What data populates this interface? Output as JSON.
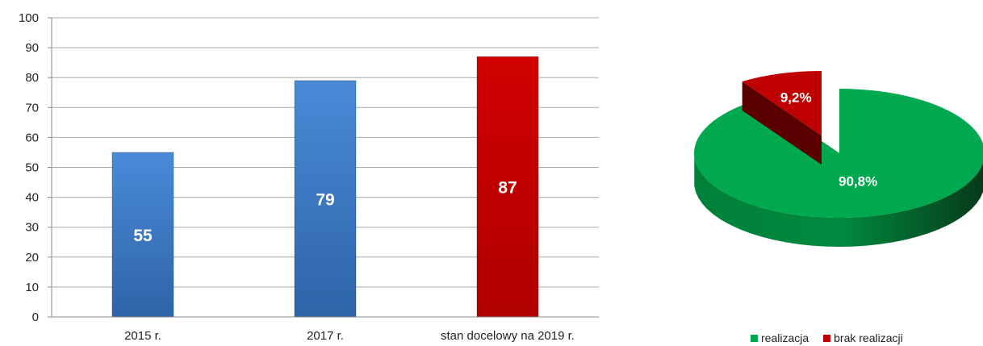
{
  "chart_data": [
    {
      "type": "bar",
      "categories": [
        "2015 r.",
        "2017 r.",
        "stan docelowy na 2019 r."
      ],
      "values": [
        55,
        79,
        87
      ],
      "data_labels": [
        "55",
        "79",
        "87"
      ],
      "bar_colors": [
        "#3a78c6",
        "#3a78c6",
        "#c00000"
      ],
      "ylim": [
        0,
        100
      ],
      "yticks": [
        0,
        10,
        20,
        30,
        40,
        50,
        60,
        70,
        80,
        90,
        100
      ],
      "grid": true,
      "title": "",
      "xlabel": "",
      "ylabel": ""
    },
    {
      "type": "pie",
      "style": "3d-exploded",
      "slices": [
        {
          "label": "realizacja",
          "value": 90.8,
          "data_label": "90,8%",
          "color": "#00a84f"
        },
        {
          "label": "brak realizacji",
          "value": 9.2,
          "data_label": "9,2%",
          "color": "#c00000"
        }
      ],
      "legend_position": "bottom"
    }
  ]
}
